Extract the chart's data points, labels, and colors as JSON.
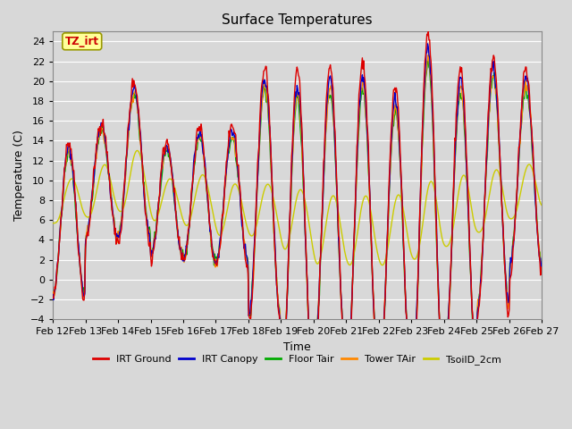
{
  "title": "Surface Temperatures",
  "xlabel": "Time",
  "ylabel": "Temperature (C)",
  "ylim": [
    -4,
    25
  ],
  "yticks": [
    -4,
    -2,
    0,
    2,
    4,
    6,
    8,
    10,
    12,
    14,
    16,
    18,
    20,
    22,
    24
  ],
  "date_labels": [
    "Feb 12",
    "Feb 13",
    "Feb 14",
    "Feb 15",
    "Feb 16",
    "Feb 17",
    "Feb 18",
    "Feb 19",
    "Feb 20",
    "Feb 21",
    "Feb 22",
    "Feb 23",
    "Feb 24",
    "Feb 25",
    "Feb 26",
    "Feb 27"
  ],
  "legend": [
    "IRT Ground",
    "IRT Canopy",
    "Floor Tair",
    "Tower TAir",
    "TsoilD_2cm"
  ],
  "legend_colors": [
    "#dd0000",
    "#0000cc",
    "#00aa00",
    "#ff8800",
    "#cccc00"
  ],
  "line_width": 1.0,
  "fig_bg_color": "#d8d8d8",
  "plot_bg": "#d8d8d8",
  "annotation_text": "TZ_irt",
  "annotation_color": "#cc0000",
  "annotation_bg": "#ffff99",
  "annotation_border": "#999900"
}
